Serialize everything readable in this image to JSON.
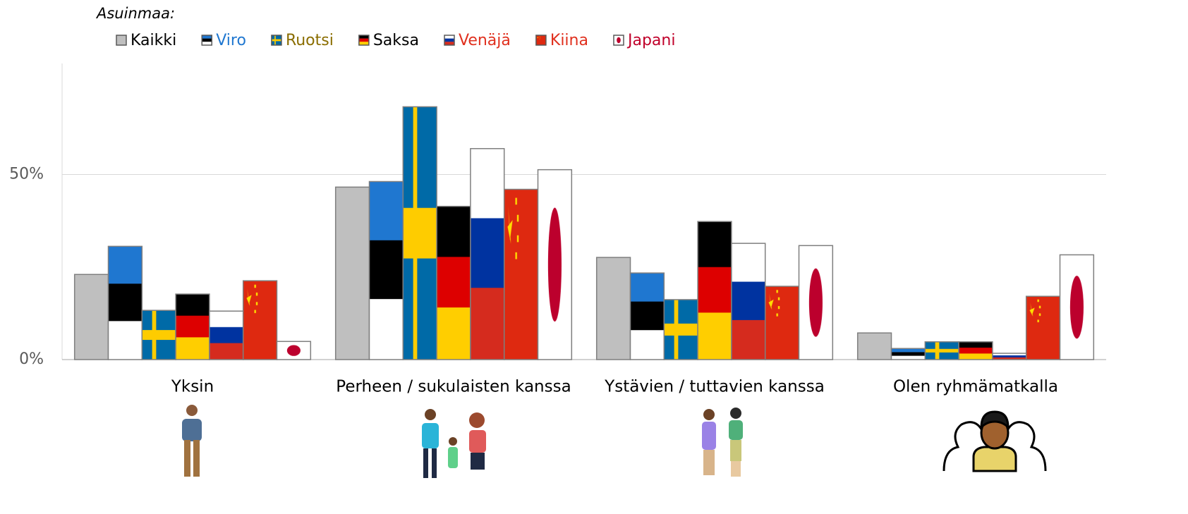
{
  "chart_data": {
    "type": "bar",
    "legend_title": "Asuinmaa:",
    "categories": [
      "Yksin",
      "Perheen / sukulaisten kanssa",
      "Ystävien / tuttavien kanssa",
      "Olen ryhmämatkalla"
    ],
    "series": [
      {
        "name": "Kaikki",
        "color": "#000000",
        "values": [
          23.0,
          46.6,
          27.6,
          7.2
        ]
      },
      {
        "name": "Viro",
        "color": "#1f77d0",
        "values": [
          30.6,
          48.1,
          23.4,
          3.0
        ]
      },
      {
        "name": "Ruotsi",
        "color": "#8a6d00",
        "values": [
          13.3,
          68.3,
          16.2,
          4.8
        ]
      },
      {
        "name": "Saksa",
        "color": "#000000",
        "values": [
          17.7,
          41.4,
          37.3,
          4.8
        ]
      },
      {
        "name": "Venäjä",
        "color": "#e0301e",
        "values": [
          13.1,
          57.0,
          31.4,
          1.7
        ]
      },
      {
        "name": "Kiina",
        "color": "#e0301e",
        "values": [
          21.3,
          46.0,
          19.8,
          17.1
        ]
      },
      {
        "name": "Japani",
        "color": "#c0002a",
        "values": [
          4.9,
          51.3,
          30.8,
          28.3
        ]
      }
    ],
    "ylim": [
      0,
      80
    ],
    "yticks": [
      {
        "value": 0,
        "label": "0%"
      },
      {
        "value": 50,
        "label": "50%"
      }
    ],
    "grid": true
  }
}
